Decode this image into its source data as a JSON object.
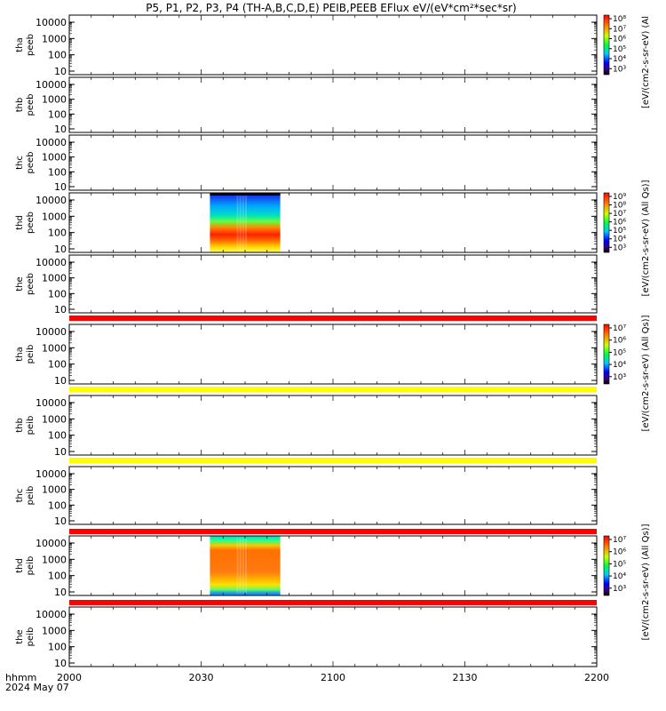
{
  "title": "P5, P1, P2, P3, P4 (TH-A,B,C,D,E) PEIB,PEEB EFlux eV/(eV*cm²*sec*sr)",
  "chart_data": {
    "type": "heatmap",
    "x_axis": {
      "label_top": "hhmm",
      "label_bottom": "2024 May 07",
      "ticks": [
        "2000",
        "2030",
        "2100",
        "2130",
        "2200"
      ]
    },
    "y_tick_labels": [
      "10",
      "100",
      "1000",
      "10000"
    ],
    "y_scale": "log",
    "panels": [
      {
        "probe": "tha",
        "instrument": "peeb",
        "data": "none"
      },
      {
        "probe": "thb",
        "instrument": "peeb",
        "data": "none"
      },
      {
        "probe": "thc",
        "instrument": "peeb",
        "data": "none"
      },
      {
        "probe": "thd",
        "instrument": "peeb",
        "data": "block",
        "start": "2032",
        "end": "2048"
      },
      {
        "probe": "the",
        "instrument": "peeb",
        "data": "none",
        "flag": "#ff0000"
      },
      {
        "probe": "tha",
        "instrument": "peib",
        "data": "none",
        "flag": "#ffff00"
      },
      {
        "probe": "thb",
        "instrument": "peib",
        "data": "none",
        "flag": "#ffff00"
      },
      {
        "probe": "thc",
        "instrument": "peib",
        "data": "none",
        "flag": "#ff0000"
      },
      {
        "probe": "thd",
        "instrument": "peib",
        "data": "block",
        "start": "2032",
        "end": "2048",
        "flag": "#ff0000"
      },
      {
        "probe": "the",
        "instrument": "peib",
        "data": "none"
      }
    ],
    "colorbars": [
      {
        "label": "[eV/(cm2-s-sr-eV) (Al",
        "ticks": [
          "10⁸",
          "10⁷",
          "10⁶",
          "10⁵",
          "10⁴",
          "10³"
        ]
      },
      {
        "label": "[eV/(cm2-s-sr-eV) (All Qs)]",
        "ticks": [
          "10⁹",
          "10⁸",
          "10⁷",
          "10⁶",
          "10⁵",
          "10⁴",
          "10³"
        ]
      },
      {
        "label": "[eV/(cm2-s-sr-eV) (All Qs)]",
        "ticks": [
          "10⁷",
          "10⁶",
          "10⁵",
          "10⁴",
          "10³"
        ]
      },
      {
        "label": "[eV/(cm2-s-sr-eV) (All Qs)]",
        "ticks": [
          "10⁷",
          "10⁶",
          "10⁵",
          "10⁴",
          "10³"
        ]
      }
    ]
  }
}
